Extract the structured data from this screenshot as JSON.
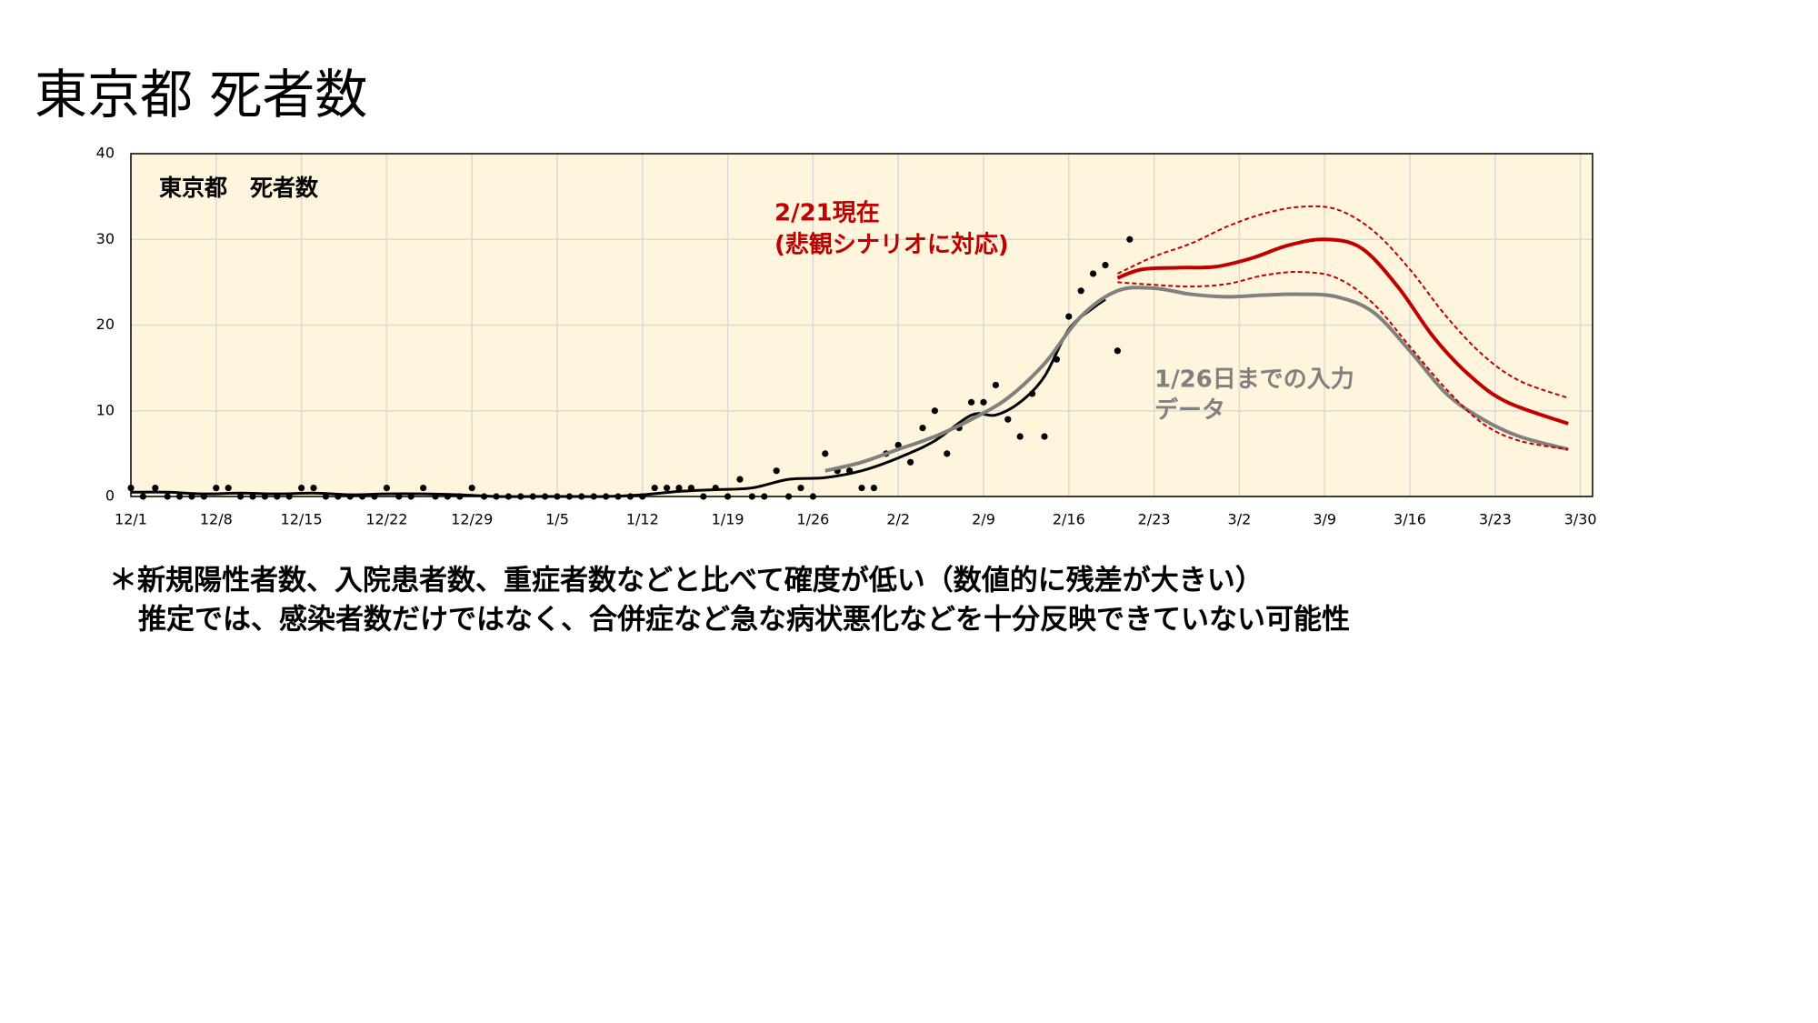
{
  "title": "東京都 死者数",
  "notes": [
    "＊新規陽性者数、入院患者数、重症者数などと比べて確度が低い（数値的に残差が大きい）",
    "推定では、感染者数だけではなく、合併症など急な病状悪化などを十分反映できていない可能性"
  ],
  "chart_data": {
    "type": "line",
    "title": "東京都　死者数",
    "xlim": [
      "12/1",
      "3/31"
    ],
    "xticks": [
      "12/1",
      "12/8",
      "12/15",
      "12/22",
      "12/29",
      "1/5",
      "1/12",
      "1/19",
      "1/26",
      "2/2",
      "2/9",
      "2/16",
      "2/23",
      "3/2",
      "3/9",
      "3/16",
      "3/23",
      "3/30"
    ],
    "ylim": [
      0,
      40
    ],
    "yticks": [
      0,
      10,
      20,
      30,
      40
    ],
    "grid": true,
    "background": "#fff5dc",
    "annotations": [
      {
        "text": "2/21現在",
        "color": "#c00000"
      },
      {
        "text": "(悲観シナリオに対応)",
        "color": "#c00000"
      },
      {
        "text": "1/26日までの入力",
        "color": "#808080"
      },
      {
        "text": "データ",
        "color": "#808080"
      }
    ],
    "series": [
      {
        "style": "dots",
        "color": "#000000",
        "x": [
          "12/1",
          "12/2",
          "12/3",
          "12/4",
          "12/5",
          "12/6",
          "12/7",
          "12/8",
          "12/9",
          "12/10",
          "12/11",
          "12/12",
          "12/13",
          "12/14",
          "12/15",
          "12/16",
          "12/17",
          "12/18",
          "12/19",
          "12/20",
          "12/21",
          "12/22",
          "12/23",
          "12/24",
          "12/25",
          "12/26",
          "12/27",
          "12/28",
          "12/29",
          "12/30",
          "12/31",
          "1/1",
          "1/2",
          "1/3",
          "1/4",
          "1/5",
          "1/6",
          "1/7",
          "1/8",
          "1/9",
          "1/10",
          "1/11",
          "1/12",
          "1/13",
          "1/14",
          "1/15",
          "1/16",
          "1/17",
          "1/18",
          "1/19",
          "1/20",
          "1/21",
          "1/22",
          "1/23",
          "1/24",
          "1/25",
          "1/26",
          "1/27",
          "1/28",
          "1/29",
          "1/30",
          "1/31",
          "2/1",
          "2/2",
          "2/3",
          "2/4",
          "2/5",
          "2/6",
          "2/7",
          "2/8",
          "2/9",
          "2/10",
          "2/11",
          "2/12",
          "2/13",
          "2/14",
          "2/15",
          "2/16",
          "2/17",
          "2/18",
          "2/19",
          "2/20",
          "2/21"
        ],
        "values": [
          1,
          0,
          1,
          0,
          0,
          0,
          0,
          1,
          1,
          0,
          0,
          0,
          0,
          0,
          1,
          1,
          0,
          0,
          0,
          0,
          0,
          1,
          0,
          0,
          1,
          0,
          0,
          0,
          1,
          0,
          0,
          0,
          0,
          0,
          0,
          0,
          0,
          0,
          0,
          0,
          0,
          0,
          0,
          1,
          1,
          1,
          1,
          0,
          1,
          0,
          2,
          0,
          0,
          3,
          0,
          1,
          0,
          5,
          3,
          3,
          1,
          1,
          5,
          6,
          4,
          8,
          10,
          5,
          8,
          11,
          11,
          13,
          9,
          7,
          12,
          7,
          16,
          21,
          24,
          26,
          27,
          17,
          30
        ]
      },
      {
        "style": "solid",
        "color": "#000000",
        "width": 3,
        "x": [
          "12/1",
          "12/4",
          "12/7",
          "12/10",
          "12/13",
          "12/16",
          "12/19",
          "12/22",
          "12/25",
          "12/28",
          "12/31",
          "1/3",
          "1/6",
          "1/9",
          "1/12",
          "1/15",
          "1/18",
          "1/21",
          "1/24",
          "1/27",
          "1/30",
          "2/2",
          "2/5",
          "2/8",
          "2/10",
          "2/12",
          "2/14",
          "2/16",
          "2/18",
          "2/19"
        ],
        "values": [
          0.5,
          0.5,
          0.3,
          0.4,
          0.3,
          0.4,
          0.2,
          0.3,
          0.3,
          0.2,
          0,
          0,
          0,
          0,
          0.2,
          0.6,
          0.8,
          1,
          2,
          2.2,
          3,
          4.5,
          6.5,
          9.5,
          9.5,
          11,
          14,
          19.5,
          22,
          23
        ]
      },
      {
        "style": "solid",
        "color": "#808080",
        "width": 4,
        "x": [
          "1/27",
          "1/30",
          "2/2",
          "2/5",
          "2/8",
          "2/11",
          "2/14",
          "2/17",
          "2/20",
          "2/23",
          "2/26",
          "3/1",
          "3/4",
          "3/7",
          "3/10",
          "3/13",
          "3/16",
          "3/19",
          "3/22",
          "3/25",
          "3/29"
        ],
        "values": [
          3,
          4,
          5.5,
          7,
          9,
          11.5,
          15.5,
          21,
          24,
          24.3,
          23.6,
          23.3,
          23.5,
          23.6,
          23.3,
          21.5,
          17,
          12,
          9,
          7,
          5.5
        ]
      },
      {
        "style": "solid",
        "color": "#c00000",
        "width": 4,
        "x": [
          "2/20",
          "2/22",
          "2/25",
          "2/28",
          "3/3",
          "3/6",
          "3/9",
          "3/12",
          "3/15",
          "3/18",
          "3/21",
          "3/24",
          "3/29"
        ],
        "values": [
          25.5,
          26.5,
          26.7,
          26.8,
          27.8,
          29.3,
          30,
          29,
          24.5,
          18.5,
          14,
          11,
          8.5
        ]
      },
      {
        "style": "dashed",
        "color": "#c00000",
        "width": 2,
        "x": [
          "2/20",
          "2/23",
          "2/26",
          "3/1",
          "3/4",
          "3/7",
          "3/10",
          "3/13",
          "3/16",
          "3/19",
          "3/22",
          "3/25",
          "3/29"
        ],
        "values": [
          26,
          28,
          29.5,
          31.5,
          33,
          33.8,
          33.5,
          31,
          26.5,
          21,
          16.5,
          13.5,
          11.5
        ]
      },
      {
        "style": "dashed",
        "color": "#c00000",
        "width": 2,
        "x": [
          "2/20",
          "2/23",
          "2/26",
          "3/1",
          "3/4",
          "3/7",
          "3/10",
          "3/13",
          "3/16",
          "3/19",
          "3/22",
          "3/25",
          "3/29"
        ],
        "values": [
          25,
          24.7,
          24.5,
          24.8,
          25.8,
          26.2,
          25.5,
          22.5,
          17.5,
          12.5,
          8.5,
          6.5,
          5.5
        ]
      }
    ]
  }
}
